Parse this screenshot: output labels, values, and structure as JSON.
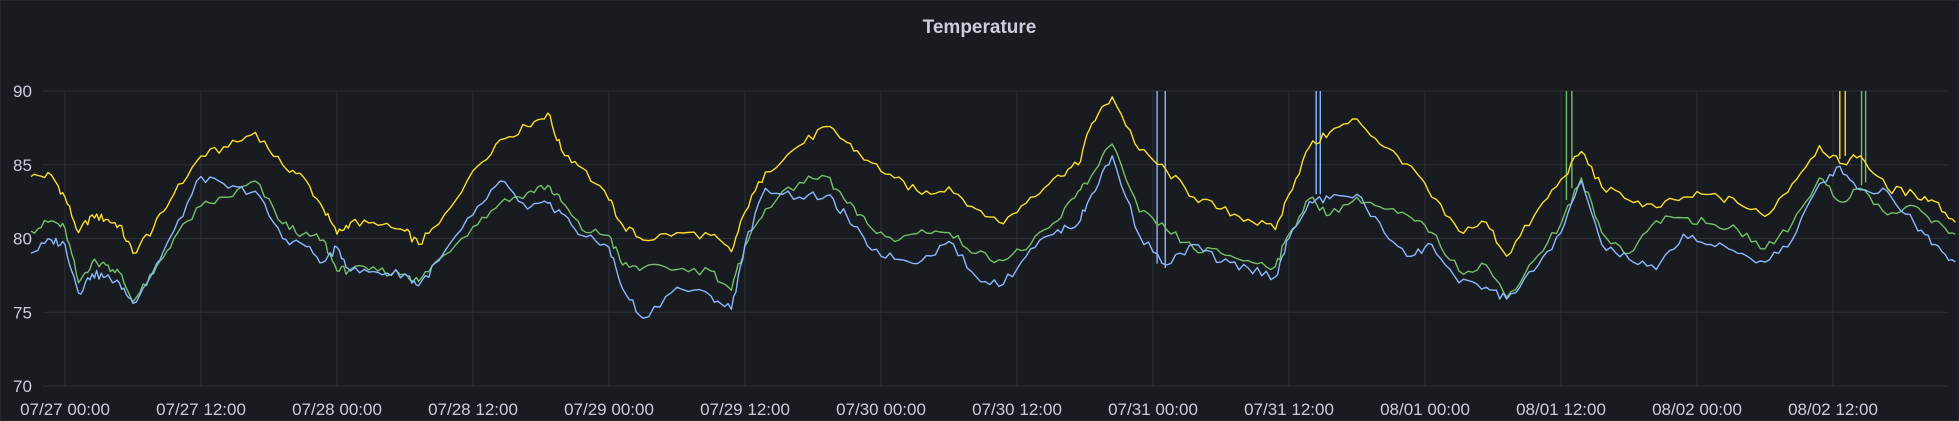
{
  "panel": {
    "title": "Temperature"
  },
  "chart_data": {
    "type": "line",
    "title": "Temperature",
    "xlabel": "",
    "ylabel": "",
    "ylim": [
      70,
      90
    ],
    "yticks": [
      70,
      75,
      80,
      85,
      90
    ],
    "xlim": [
      -0.5,
      27.8
    ],
    "xticks": [
      {
        "x": 0,
        "label": "07/27 00:00"
      },
      {
        "x": 2,
        "label": "07/27 12:00"
      },
      {
        "x": 4,
        "label": "07/28 00:00"
      },
      {
        "x": 6,
        "label": "07/28 12:00"
      },
      {
        "x": 8,
        "label": "07/29 00:00"
      },
      {
        "x": 10,
        "label": "07/29 12:00"
      },
      {
        "x": 12,
        "label": "07/30 00:00"
      },
      {
        "x": 14,
        "label": "07/30 12:00"
      },
      {
        "x": 16,
        "label": "07/31 00:00"
      },
      {
        "x": 18,
        "label": "07/31 12:00"
      },
      {
        "x": 20,
        "label": "08/01 00:00"
      },
      {
        "x": 22,
        "label": "08/01 12:00"
      },
      {
        "x": 24,
        "label": "08/02 00:00"
      },
      {
        "x": 26,
        "label": "08/02 12:00"
      }
    ],
    "grid": true,
    "legend": "none",
    "series": [
      {
        "color": "#fade2a",
        "x": [
          -0.5,
          -0.2,
          0.0,
          0.2,
          0.4,
          0.6,
          0.8,
          1.0,
          1.3,
          1.6,
          2.0,
          2.4,
          2.8,
          3.2,
          3.5,
          3.8,
          4.0,
          4.2,
          4.6,
          5.0,
          5.2,
          5.5,
          6.0,
          6.4,
          6.8,
          7.1,
          7.3,
          7.6,
          8.0,
          8.2,
          8.5,
          9.0,
          9.5,
          9.8,
          10.0,
          10.3,
          10.8,
          11.2,
          11.5,
          11.8,
          12.2,
          12.6,
          13.0,
          13.4,
          13.8,
          14.2,
          14.6,
          14.9,
          15.1,
          15.4,
          15.8,
          16.2,
          16.6,
          17.0,
          17.4,
          17.8,
          18.0,
          18.3,
          18.6,
          19.0,
          19.4,
          19.8,
          20.1,
          20.5,
          20.9,
          21.2,
          21.6,
          22.0,
          22.3,
          22.6,
          23.0,
          23.4,
          23.8,
          24.2,
          24.6,
          25.0,
          25.4,
          25.8,
          26.1,
          26.4,
          26.8,
          27.2,
          27.5,
          27.8
        ],
        "values": [
          84.2,
          84.3,
          82.8,
          80.4,
          81.6,
          81.3,
          80.9,
          79.0,
          80.7,
          83.0,
          85.6,
          86.2,
          87.2,
          85.0,
          84.2,
          82.0,
          80.3,
          81.1,
          80.9,
          80.5,
          79.6,
          81.0,
          84.6,
          86.7,
          87.6,
          88.5,
          86.0,
          84.8,
          82.6,
          80.9,
          79.9,
          80.4,
          80.2,
          79.1,
          81.8,
          84.5,
          86.3,
          87.6,
          86.5,
          85.3,
          84.1,
          83.0,
          83.5,
          82.0,
          81.0,
          82.8,
          84.3,
          85.0,
          87.8,
          89.6,
          86.0,
          84.6,
          82.8,
          82.0,
          81.3,
          80.6,
          83.0,
          86.2,
          87.2,
          88.1,
          86.2,
          84.9,
          82.8,
          80.5,
          81.1,
          78.8,
          81.5,
          84.0,
          85.9,
          83.5,
          82.6,
          82.1,
          82.8,
          83.0,
          82.4,
          81.5,
          83.7,
          86.3,
          85.1,
          85.6,
          83.4,
          83.0,
          82.5,
          81.1
        ]
      },
      {
        "color": "#73bf69",
        "x": [
          -0.5,
          -0.2,
          0.0,
          0.2,
          0.4,
          0.6,
          0.8,
          1.0,
          1.3,
          1.6,
          2.0,
          2.4,
          2.8,
          3.2,
          3.5,
          3.8,
          4.0,
          4.2,
          4.6,
          5.0,
          5.2,
          5.5,
          6.0,
          6.4,
          6.8,
          7.1,
          7.3,
          7.6,
          8.0,
          8.2,
          8.5,
          9.0,
          9.5,
          9.8,
          10.0,
          10.3,
          10.8,
          11.2,
          11.5,
          11.8,
          12.2,
          12.6,
          13.0,
          13.4,
          13.8,
          14.2,
          14.6,
          14.9,
          15.1,
          15.4,
          15.8,
          16.2,
          16.6,
          17.0,
          17.4,
          17.8,
          18.0,
          18.3,
          18.6,
          19.0,
          19.4,
          19.8,
          20.1,
          20.5,
          20.9,
          21.2,
          21.6,
          22.0,
          22.3,
          22.6,
          23.0,
          23.4,
          23.8,
          24.2,
          24.6,
          25.0,
          25.4,
          25.8,
          26.1,
          26.4,
          26.8,
          27.2,
          27.5,
          27.8
        ],
        "values": [
          80.5,
          81.2,
          80.7,
          77.0,
          78.4,
          78.2,
          77.7,
          75.7,
          77.6,
          80.0,
          82.2,
          82.8,
          83.9,
          81.0,
          80.3,
          79.9,
          77.8,
          77.9,
          77.8,
          77.6,
          77.1,
          78.6,
          80.8,
          82.4,
          83.1,
          83.6,
          82.5,
          80.6,
          80.2,
          78.2,
          78.0,
          77.9,
          77.8,
          76.5,
          79.5,
          82.0,
          83.8,
          84.2,
          82.4,
          81.0,
          79.8,
          80.6,
          80.4,
          79.0,
          78.5,
          79.6,
          81.2,
          83.2,
          84.3,
          86.4,
          81.8,
          80.6,
          79.3,
          79.0,
          78.5,
          78.1,
          80.3,
          82.7,
          81.6,
          82.8,
          82.0,
          81.4,
          80.4,
          77.8,
          78.2,
          76.0,
          78.5,
          81.0,
          84.1,
          80.4,
          79.0,
          81.2,
          81.4,
          81.0,
          80.6,
          79.3,
          81.0,
          84.1,
          82.5,
          83.4,
          81.6,
          82.2,
          81.2,
          80.3
        ]
      },
      {
        "color": "#8ab8ff",
        "x": [
          -0.5,
          -0.2,
          0.0,
          0.2,
          0.4,
          0.6,
          0.8,
          1.0,
          1.3,
          1.6,
          2.0,
          2.4,
          2.8,
          3.2,
          3.5,
          3.8,
          4.0,
          4.2,
          4.6,
          5.0,
          5.2,
          5.5,
          6.0,
          6.4,
          6.8,
          7.1,
          7.3,
          7.6,
          8.0,
          8.2,
          8.5,
          9.0,
          9.5,
          9.8,
          10.0,
          10.3,
          10.8,
          11.2,
          11.5,
          11.8,
          12.2,
          12.6,
          13.0,
          13.4,
          13.8,
          14.2,
          14.6,
          14.9,
          15.1,
          15.4,
          15.8,
          16.2,
          16.6,
          17.0,
          17.4,
          17.8,
          18.0,
          18.3,
          18.6,
          19.0,
          19.4,
          19.8,
          20.1,
          20.5,
          20.9,
          21.2,
          21.6,
          22.0,
          22.3,
          22.6,
          23.0,
          23.4,
          23.8,
          24.2,
          24.6,
          25.0,
          25.4,
          25.8,
          26.1,
          26.4,
          26.8,
          27.2,
          27.5,
          27.8
        ],
        "values": [
          79.0,
          79.9,
          79.6,
          76.3,
          77.6,
          77.4,
          77.0,
          75.6,
          77.8,
          80.5,
          84.2,
          83.4,
          83.2,
          80.0,
          79.6,
          78.4,
          79.4,
          77.8,
          77.7,
          77.6,
          76.8,
          78.5,
          81.6,
          83.9,
          82.0,
          82.4,
          81.7,
          80.2,
          79.4,
          76.6,
          74.6,
          76.7,
          76.1,
          75.2,
          79.6,
          83.4,
          82.8,
          82.9,
          81.5,
          79.5,
          78.6,
          78.5,
          79.8,
          77.4,
          76.9,
          79.3,
          80.6,
          81.0,
          83.0,
          85.6,
          80.2,
          78.2,
          79.6,
          78.4,
          78.0,
          77.4,
          80.0,
          82.5,
          82.7,
          83.0,
          80.4,
          78.8,
          79.6,
          77.0,
          76.7,
          75.9,
          77.8,
          80.4,
          83.9,
          79.6,
          78.6,
          77.9,
          80.3,
          79.6,
          79.0,
          78.4,
          79.9,
          83.7,
          84.9,
          83.3,
          83.2,
          81.0,
          79.6,
          78.4
        ]
      }
    ]
  }
}
